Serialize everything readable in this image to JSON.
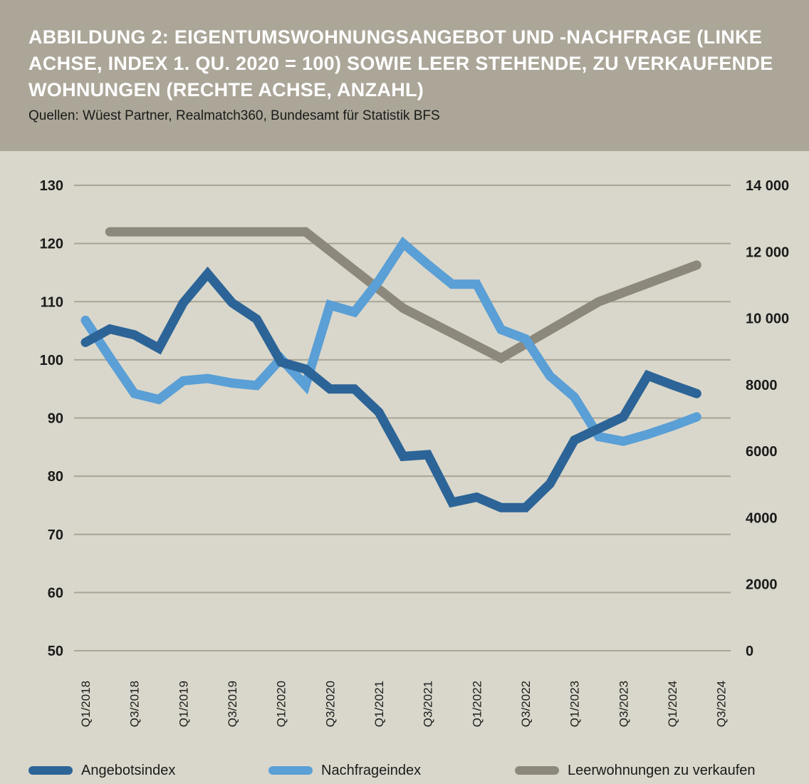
{
  "header": {
    "title": "ABBILDUNG 2: EIGENTUMSWOHNUNGSANGEBOT UND -NACHFRAGE (LINKE ACHSE, INDEX 1. QU. 2020 = 100) SOWIE LEER STEHENDE, ZU VERKAUFENDE WOHNUNGEN (RECHTE ACHSE, ANZAHL)",
    "subtitle": "Quellen: Wüest Partner, Realmatch360, Bundesamt für Statistik BFS"
  },
  "colors": {
    "header_bg": "#aba698",
    "plot_bg": "#d9d7cb",
    "grid": "#a8a597",
    "angebot": "#2c6497",
    "nachfrage": "#5a9fd6",
    "leer": "#8c897c"
  },
  "chart_data": {
    "type": "line",
    "x_tick_labels": [
      "Q1/2018",
      "Q3/2018",
      "Q1/2019",
      "Q3/2019",
      "Q1/2020",
      "Q3/2020",
      "Q1/2021",
      "Q3/2021",
      "Q1/2022",
      "Q3/2022",
      "Q1/2023",
      "Q3/2023",
      "Q1/2024",
      "Q3/2024"
    ],
    "y_left_ticks": [
      "130",
      "120",
      "110",
      "100",
      "90",
      "80",
      "70",
      "60",
      "50"
    ],
    "y_right_ticks": [
      "14 000",
      "12 000",
      "10 000",
      "8000",
      "6000",
      "4000",
      "2000",
      "0"
    ],
    "ylim_left": [
      50,
      130
    ],
    "ylim_right": [
      0,
      14000
    ],
    "grid": true,
    "legend_position": "bottom",
    "series": [
      {
        "name": "Angebotsindex",
        "axis": "left",
        "x": [
          "Q1/2018",
          "Q2/2018",
          "Q3/2018",
          "Q4/2018",
          "Q1/2019",
          "Q2/2019",
          "Q3/2019",
          "Q4/2019",
          "Q1/2020",
          "Q2/2020",
          "Q3/2020",
          "Q4/2020",
          "Q1/2021",
          "Q2/2021",
          "Q3/2021",
          "Q4/2021",
          "Q1/2022",
          "Q2/2022",
          "Q3/2022",
          "Q4/2022",
          "Q1/2023",
          "Q2/2023",
          "Q3/2023",
          "Q4/2023",
          "Q1/2024",
          "Q2/2024"
        ],
        "values": [
          103,
          105.3,
          104.3,
          102,
          109.8,
          114.8,
          109.8,
          107,
          99.6,
          98.4,
          95,
          95,
          91,
          83.4,
          83.7,
          75.5,
          76.4,
          74.6,
          74.6,
          78.7,
          86.2,
          88.2,
          90.2,
          97.3,
          95.7,
          94.2
        ]
      },
      {
        "name": "Nachfrageindex",
        "axis": "left",
        "x": [
          "Q1/2018",
          "Q2/2018",
          "Q3/2018",
          "Q4/2018",
          "Q1/2019",
          "Q2/2019",
          "Q3/2019",
          "Q4/2019",
          "Q1/2020",
          "Q2/2020",
          "Q3/2020",
          "Q4/2020",
          "Q1/2021",
          "Q2/2021",
          "Q3/2021",
          "Q4/2021",
          "Q1/2022",
          "Q2/2022",
          "Q3/2022",
          "Q4/2022",
          "Q1/2023",
          "Q2/2023",
          "Q3/2023",
          "Q4/2023",
          "Q1/2024",
          "Q2/2024"
        ],
        "values": [
          106.8,
          100.4,
          94.2,
          93.2,
          96.4,
          96.8,
          96,
          95.6,
          100.2,
          95.6,
          109.4,
          108.2,
          113.6,
          120,
          116.4,
          113,
          113,
          105.2,
          103.6,
          97.2,
          93.6,
          86.8,
          86,
          87.2,
          88.6,
          90.2
        ]
      },
      {
        "name": "Leerwohnungen zu verkaufen",
        "axis": "right",
        "x": [
          "Q2/2018",
          "Q2/2019",
          "Q2/2020",
          "Q2/2021",
          "Q2/2022",
          "Q2/2023",
          "Q2/2024"
        ],
        "values": [
          12600,
          12600,
          12600,
          10300,
          8800,
          10500,
          11600
        ]
      }
    ]
  }
}
